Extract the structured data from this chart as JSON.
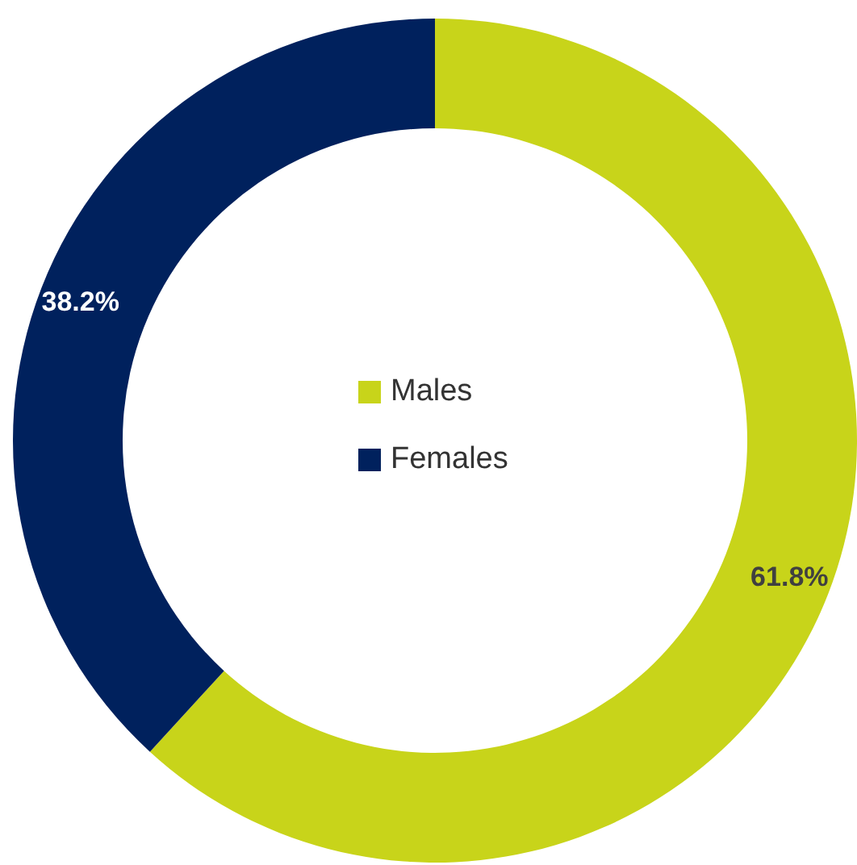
{
  "chart_data": {
    "type": "donut",
    "categories": [
      "Males",
      "Females"
    ],
    "values": [
      61.8,
      38.2
    ],
    "colors": [
      "#c8d41a",
      "#00215d"
    ],
    "value_labels": [
      "61.8%",
      "38.2%"
    ],
    "legend": "center"
  }
}
